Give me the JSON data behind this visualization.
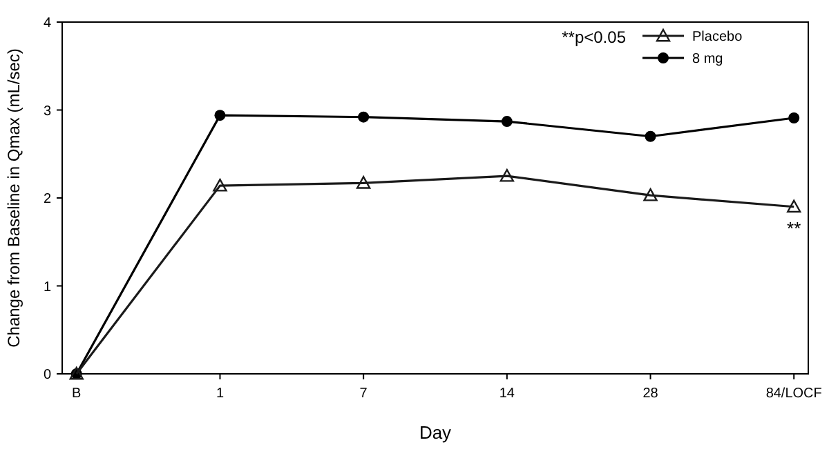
{
  "chart_data": {
    "type": "line",
    "xlabel": "Day",
    "ylabel": "Change from Baseline in Qmax (mL/sec)",
    "categories": [
      "B",
      "1",
      "7",
      "14",
      "28",
      "84/LOCF"
    ],
    "series": [
      {
        "name": "Placebo",
        "color": "#1a1a1a",
        "marker": "triangle",
        "values": [
          0,
          2.14,
          2.17,
          2.25,
          2.03,
          1.9
        ]
      },
      {
        "name": "8 mg",
        "color": "#000000",
        "marker": "circle",
        "values": [
          0,
          2.94,
          2.92,
          2.87,
          2.7,
          2.91
        ]
      }
    ],
    "ylim": [
      0,
      4
    ],
    "yticks": [
      0,
      1,
      2,
      3,
      4
    ],
    "grid": false,
    "legend": "top right",
    "line_style": "solid",
    "annotations": [
      "**p<0.05",
      {
        "text": "**",
        "x": "84/LOCF",
        "y": 1.9
      }
    ]
  }
}
